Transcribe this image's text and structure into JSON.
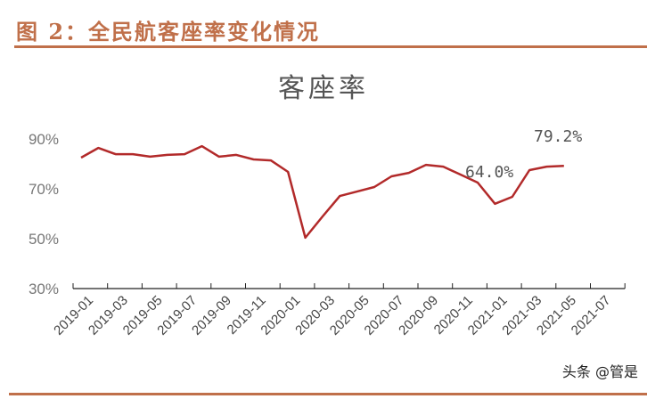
{
  "figure": {
    "title": "图 2：全民航客座率变化情况",
    "watermark": "头条 @管是"
  },
  "chart_data": {
    "type": "line",
    "title": "客座率",
    "xlabel": "",
    "ylabel": "",
    "ylim": [
      30,
      90
    ],
    "yticks": [
      "30%",
      "50%",
      "70%",
      "90%"
    ],
    "xtick_labels": [
      "2019-01",
      "2019-03",
      "2019-05",
      "2019-07",
      "2019-09",
      "2019-11",
      "2020-01",
      "2020-03",
      "2020-05",
      "2020-07",
      "2020-09",
      "2020-11",
      "2021-01",
      "2021-03",
      "2021-05",
      "2021-07"
    ],
    "grid": false,
    "legend": null,
    "series": [
      {
        "name": "客座率",
        "color": "#b22a2a",
        "x": [
          "2019-01",
          "2019-02",
          "2019-03",
          "2019-04",
          "2019-05",
          "2019-06",
          "2019-07",
          "2019-08",
          "2019-09",
          "2019-10",
          "2019-11",
          "2019-12",
          "2020-01",
          "2020-02",
          "2020-03",
          "2020-04",
          "2020-05",
          "2020-06",
          "2020-07",
          "2020-08",
          "2020-09",
          "2020-10",
          "2020-11",
          "2020-12",
          "2021-01",
          "2021-02",
          "2021-03",
          "2021-04",
          "2021-05"
        ],
        "values": [
          82.5,
          86.4,
          83.9,
          83.9,
          82.9,
          83.6,
          83.9,
          87.1,
          82.9,
          83.6,
          81.8,
          81.4,
          76.8,
          50.4,
          58.9,
          67.1,
          68.9,
          70.7,
          75.0,
          76.4,
          79.6,
          78.9,
          75.7,
          72.5,
          64.0,
          66.8,
          77.5,
          78.9,
          79.2
        ]
      }
    ],
    "annotations": [
      {
        "text": "64.0%",
        "x": "2021-01"
      },
      {
        "text": "79.2%",
        "x": "2021-05"
      }
    ]
  }
}
